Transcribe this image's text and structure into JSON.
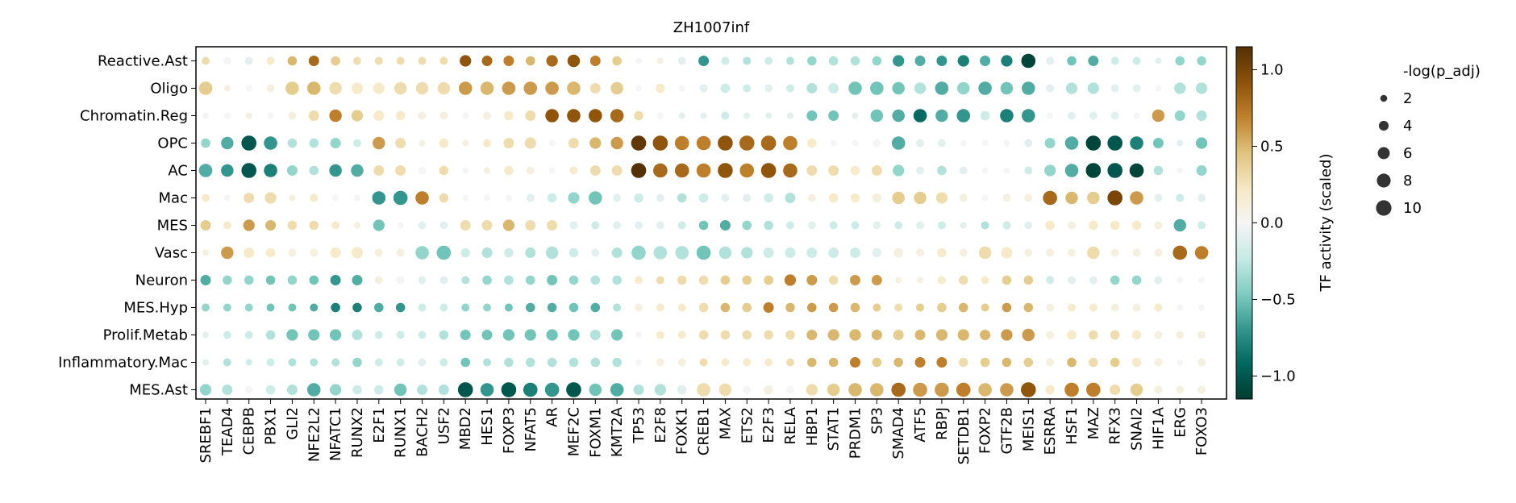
{
  "chart_data": {
    "type": "scatter",
    "subtype": "dotplot",
    "title": "ZH1007inf",
    "xlabel": "",
    "ylabel": "",
    "categories_x": [
      "SREBF1",
      "TEAD4",
      "CEBPB",
      "PBX1",
      "GLI2",
      "NFE2L2",
      "NFATC1",
      "RUNX2",
      "E2F1",
      "RUNX1",
      "BACH2",
      "USF2",
      "MBD2",
      "HES1",
      "FOXP3",
      "NFAT5",
      "AR",
      "MEF2C",
      "FOXM1",
      "KMT2A",
      "TP53",
      "E2F8",
      "FOXK1",
      "CREB1",
      "MAX",
      "ETS2",
      "E2F3",
      "RELA",
      "HBP1",
      "STAT1",
      "PRDM1",
      "SP3",
      "SMAD4",
      "ATF5",
      "RBPJ",
      "SETDB1",
      "FOXP2",
      "GTF2B",
      "MEIS1",
      "ESRRA",
      "HSF1",
      "MAZ",
      "RFX3",
      "SNAI2",
      "HIF1A",
      "ERG",
      "FOXO3"
    ],
    "categories_y": [
      "Reactive.Ast",
      "Oligo",
      "Chromatin.Reg",
      "OPC",
      "AC",
      "Mac",
      "MES",
      "Vasc",
      "Neuron",
      "MES.Hyp",
      "Prolif.Metab",
      "Inflammatory.Mac",
      "MES.Ast"
    ],
    "activity": [
      [
        0.3,
        0,
        -0.1,
        0.2,
        0.5,
        0.8,
        0.4,
        0.3,
        0.3,
        0.3,
        0.3,
        0.3,
        0.9,
        0.8,
        0.7,
        0.5,
        0.8,
        0.9,
        0.7,
        0.4,
        0,
        0.1,
        -0.1,
        -0.7,
        -0.2,
        -0.3,
        -0.2,
        -0.3,
        -0.4,
        -0.3,
        -0.3,
        -0.4,
        -0.7,
        -0.6,
        -0.7,
        -0.8,
        -0.6,
        -0.8,
        -1.1,
        -0.1,
        -0.5,
        -0.6,
        -0.2,
        -0.2,
        -0.1,
        -0.4,
        -0.4
      ],
      [
        0.4,
        0.1,
        0,
        0.1,
        0.4,
        0.5,
        0.3,
        0.2,
        0.2,
        0.3,
        0.3,
        0.3,
        0.6,
        0.5,
        0.6,
        0.6,
        0.6,
        0.5,
        0.3,
        0.4,
        0,
        0.2,
        0,
        -0.1,
        -0.2,
        -0.2,
        -0.1,
        -0.2,
        -0.3,
        -0.2,
        -0.5,
        -0.5,
        -0.5,
        -0.3,
        -0.6,
        -0.4,
        -0.6,
        -0.5,
        -0.6,
        -0.1,
        -0.3,
        -0.3,
        -0.1,
        -0.1,
        0,
        -0.3,
        -0.3
      ],
      [
        0,
        0,
        0.1,
        0,
        0.1,
        0.3,
        0.7,
        0.4,
        0.2,
        0.2,
        0.1,
        0.1,
        0,
        0.1,
        0.2,
        0.3,
        0.9,
        0.9,
        0.9,
        0.8,
        0.3,
        0,
        -0.1,
        -0.1,
        -0.2,
        -0.1,
        -0.1,
        -0.1,
        -0.5,
        -0.5,
        -0.1,
        -0.5,
        -0.6,
        -0.9,
        -0.6,
        -0.7,
        -0.2,
        -0.8,
        -0.7,
        0,
        -0.1,
        -0.1,
        -0.1,
        0,
        0.6,
        -0.4,
        -0.3
      ],
      [
        -0.4,
        -0.6,
        -1,
        -0.7,
        -0.3,
        -0.3,
        -0.4,
        -0.2,
        0.6,
        0.3,
        0.1,
        0.2,
        0.1,
        0.2,
        0.3,
        0.3,
        0,
        0.3,
        0.5,
        0.6,
        1.1,
        0.9,
        0.7,
        0.7,
        0.9,
        0.8,
        0.8,
        0.7,
        0.2,
        0,
        0,
        0,
        -0.6,
        -0.1,
        -0.1,
        0,
        0,
        0,
        -0.1,
        -0.4,
        -0.6,
        -1.1,
        -1,
        -0.8,
        -0.5,
        -0.1,
        -0.5
      ],
      [
        -0.6,
        -0.7,
        -1,
        -0.8,
        -0.4,
        -0.3,
        -0.7,
        -0.6,
        0.3,
        0.3,
        0,
        0.3,
        0,
        0.1,
        0.2,
        0.1,
        0,
        0.2,
        0.3,
        0.3,
        1.2,
        0.8,
        0.8,
        0.7,
        0.9,
        0.7,
        0.9,
        0.8,
        0.3,
        0.3,
        0.2,
        0.3,
        -0.4,
        -0.1,
        -0.3,
        -0.1,
        0,
        0,
        -0.2,
        -0.4,
        -0.6,
        -1.1,
        -1,
        -1.1,
        -0.3,
        0,
        -0.4
      ],
      [
        0.2,
        0,
        0.3,
        0.3,
        0.1,
        0.2,
        0,
        0,
        -0.7,
        -0.7,
        0.7,
        0.3,
        0,
        0,
        0,
        -0.1,
        -0.2,
        -0.4,
        -0.5,
        -0.1,
        -0.2,
        -0.1,
        -0.3,
        -0.2,
        -0.1,
        -0.1,
        -0.2,
        -0.3,
        0.1,
        0.2,
        0.2,
        0.1,
        0.4,
        0.4,
        0.3,
        0.1,
        0,
        0.1,
        0.1,
        0.8,
        0.5,
        0.4,
        1,
        0.6,
        -0.1,
        -0.2,
        -0.1
      ],
      [
        0.4,
        0.2,
        0.6,
        0.5,
        0.3,
        0.3,
        0.2,
        0.1,
        -0.5,
        0,
        -0.1,
        -0.1,
        0.3,
        0.3,
        0.5,
        0.3,
        0.3,
        -0.1,
        -0.2,
        -0.1,
        -0.1,
        -0.1,
        -0.2,
        -0.5,
        -0.6,
        -0.4,
        -0.3,
        -0.2,
        -0.1,
        -0.2,
        -0.2,
        -0.1,
        -0.2,
        -0.1,
        -0.2,
        -0.1,
        -0.3,
        -0.2,
        -0.1,
        0.2,
        0.1,
        0.2,
        0.2,
        0.2,
        0.1,
        -0.6,
        -0.2
      ],
      [
        0.1,
        0.6,
        0.2,
        0.2,
        0.1,
        0.1,
        0.2,
        0.2,
        0.1,
        0.1,
        -0.4,
        -0.5,
        -0.2,
        -0.3,
        -0.2,
        -0.3,
        -0.3,
        -0.2,
        -0.1,
        -0.3,
        -0.4,
        -0.3,
        -0.3,
        -0.5,
        -0.3,
        -0.3,
        -0.2,
        -0.2,
        -0.2,
        -0.2,
        -0.2,
        -0.1,
        0.1,
        0.1,
        0.2,
        0.1,
        0.3,
        0.2,
        0.1,
        0.1,
        0.1,
        0.3,
        0.1,
        0.1,
        0.1,
        0.8,
        0.7
      ],
      [
        -0.6,
        -0.4,
        -0.4,
        -0.5,
        -0.4,
        -0.5,
        -0.7,
        -0.6,
        0.1,
        0,
        -0.1,
        -0.1,
        -0.3,
        -0.4,
        -0.3,
        -0.4,
        -0.5,
        -0.4,
        -0.3,
        -0.3,
        0.2,
        0.3,
        0.3,
        0.3,
        0.4,
        0.4,
        0.4,
        0.7,
        0.6,
        0.3,
        0.6,
        0.6,
        0.1,
        0.1,
        0.2,
        0.3,
        0.2,
        0.4,
        0.4,
        -0.2,
        -0.1,
        -0.1,
        -0.4,
        -0.4,
        -0.1,
        0,
        0
      ],
      [
        -0.4,
        -0.4,
        -0.4,
        -0.5,
        -0.5,
        -0.6,
        -0.8,
        -0.8,
        -0.6,
        -0.7,
        -0.2,
        -0.2,
        -0.4,
        -0.4,
        -0.5,
        -0.6,
        -0.6,
        -0.5,
        -0.6,
        -0.3,
        0.1,
        0.2,
        0.2,
        0.3,
        0.5,
        0.4,
        0.7,
        0.5,
        0.6,
        0.6,
        0.5,
        0.4,
        0.3,
        0.4,
        0.4,
        0.5,
        0.4,
        0.6,
        0.5,
        0.1,
        0.2,
        0.2,
        0.1,
        0.1,
        0.2,
        0,
        0
      ],
      [
        -0.1,
        -0.2,
        -0.2,
        -0.3,
        -0.5,
        -0.5,
        -0.5,
        -0.3,
        -0.2,
        -0.2,
        -0.2,
        -0.3,
        -0.5,
        -0.5,
        -0.5,
        -0.5,
        -0.5,
        -0.5,
        -0.3,
        -0.5,
        0,
        0.2,
        0.2,
        0.3,
        0.3,
        0.3,
        0.3,
        0.3,
        0.5,
        0.5,
        0.5,
        0.5,
        0.4,
        0.5,
        0.5,
        0.5,
        0.5,
        0.6,
        0.6,
        0.1,
        0.2,
        0.3,
        0.3,
        0.2,
        0.1,
        0.1,
        0.1
      ],
      [
        -0.1,
        -0.3,
        -0.2,
        -0.2,
        -0.3,
        -0.3,
        -0.3,
        -0.4,
        -0.2,
        -0.2,
        -0.1,
        -0.2,
        -0.5,
        -0.3,
        -0.3,
        -0.3,
        -0.3,
        -0.3,
        -0.3,
        -0.3,
        0,
        0.1,
        0.1,
        0.3,
        0.2,
        0.2,
        0.2,
        0.3,
        0.5,
        0.5,
        0.7,
        0.4,
        0.5,
        0.7,
        0.7,
        0.3,
        0.4,
        0.5,
        0.4,
        0.1,
        0.5,
        0.3,
        0.4,
        0.2,
        0.1,
        0,
        0.1
      ],
      [
        -0.4,
        -0.3,
        0,
        -0.2,
        -0.3,
        -0.6,
        -0.4,
        -0.2,
        -0.2,
        -0.5,
        -0.3,
        -0.3,
        -1,
        -0.7,
        -1,
        -0.8,
        -0.7,
        -1,
        -0.5,
        -0.6,
        -0.3,
        -0.3,
        -0.1,
        0.3,
        0.3,
        0,
        0.1,
        0,
        0.3,
        0.4,
        0.5,
        0.5,
        0.8,
        0.6,
        0.6,
        0.7,
        0.5,
        0.6,
        0.9,
        0.2,
        0.7,
        0.7,
        0.3,
        0.4,
        0.1,
        0.1,
        0.1
      ]
    ],
    "size_value": [
      [
        3,
        3,
        3,
        3,
        4,
        5,
        4,
        3,
        3,
        3,
        3,
        3,
        6,
        5,
        5,
        4,
        6,
        7,
        5,
        4,
        2,
        2,
        3,
        5,
        3,
        3,
        3,
        3,
        4,
        4,
        4,
        4,
        6,
        5,
        5,
        6,
        5,
        6,
        9,
        3,
        4,
        5,
        3,
        3,
        2,
        4,
        4
      ],
      [
        8,
        2,
        2,
        3,
        8,
        8,
        7,
        6,
        6,
        7,
        7,
        7,
        8,
        8,
        8,
        8,
        8,
        8,
        5,
        7,
        2,
        4,
        2,
        3,
        4,
        3,
        3,
        3,
        5,
        5,
        8,
        8,
        7,
        6,
        8,
        7,
        8,
        7,
        8,
        3,
        6,
        6,
        3,
        3,
        2,
        6,
        6
      ],
      [
        2,
        2,
        2,
        2,
        3,
        5,
        7,
        6,
        5,
        4,
        3,
        3,
        2,
        3,
        4,
        5,
        8,
        8,
        8,
        8,
        4,
        2,
        2,
        2,
        3,
        2,
        2,
        2,
        5,
        5,
        2,
        7,
        7,
        8,
        7,
        8,
        4,
        8,
        8,
        2,
        3,
        3,
        3,
        2,
        7,
        5,
        5
      ],
      [
        4,
        7,
        10,
        8,
        4,
        4,
        5,
        3,
        7,
        5,
        2,
        4,
        2,
        3,
        5,
        6,
        2,
        5,
        6,
        7,
        10,
        10,
        9,
        9,
        10,
        10,
        10,
        9,
        4,
        2,
        2,
        3,
        8,
        3,
        3,
        2,
        2,
        2,
        3,
        5,
        8,
        10,
        10,
        8,
        5,
        2,
        6
      ],
      [
        8,
        7,
        10,
        8,
        5,
        4,
        7,
        7,
        5,
        5,
        3,
        4,
        2,
        2,
        4,
        3,
        2,
        3,
        5,
        5,
        10,
        9,
        9,
        9,
        10,
        9,
        10,
        9,
        5,
        5,
        4,
        5,
        6,
        3,
        4,
        3,
        2,
        2,
        3,
        6,
        8,
        10,
        10,
        9,
        4,
        2,
        5
      ],
      [
        3,
        2,
        5,
        6,
        2,
        3,
        2,
        2,
        8,
        9,
        8,
        4,
        2,
        2,
        2,
        3,
        4,
        6,
        8,
        3,
        4,
        3,
        4,
        4,
        3,
        3,
        4,
        5,
        3,
        4,
        4,
        4,
        7,
        7,
        6,
        3,
        2,
        3,
        3,
        9,
        7,
        7,
        10,
        8,
        3,
        3,
        3
      ],
      [
        5,
        3,
        6,
        5,
        4,
        4,
        3,
        2,
        6,
        2,
        3,
        3,
        5,
        5,
        6,
        5,
        5,
        3,
        3,
        3,
        3,
        3,
        3,
        4,
        5,
        4,
        4,
        3,
        3,
        3,
        3,
        3,
        3,
        3,
        3,
        2,
        3,
        3,
        3,
        4,
        3,
        4,
        4,
        4,
        3,
        7,
        3
      ],
      [
        2,
        7,
        5,
        4,
        3,
        3,
        5,
        6,
        3,
        3,
        8,
        9,
        4,
        5,
        4,
        5,
        7,
        4,
        3,
        5,
        9,
        8,
        8,
        9,
        7,
        6,
        5,
        5,
        5,
        5,
        5,
        4,
        4,
        3,
        4,
        3,
        7,
        6,
        3,
        3,
        3,
        7,
        3,
        3,
        3,
        9,
        8
      ],
      [
        5,
        4,
        4,
        4,
        4,
        4,
        5,
        5,
        3,
        3,
        3,
        3,
        3,
        4,
        4,
        4,
        5,
        4,
        4,
        4,
        3,
        3,
        4,
        4,
        4,
        4,
        4,
        6,
        5,
        4,
        5,
        5,
        2,
        2,
        3,
        4,
        3,
        4,
        4,
        3,
        3,
        3,
        4,
        4,
        3,
        2,
        2
      ],
      [
        3,
        3,
        3,
        3,
        3,
        3,
        4,
        4,
        4,
        4,
        3,
        3,
        3,
        3,
        3,
        4,
        4,
        4,
        4,
        3,
        3,
        3,
        3,
        4,
        4,
        4,
        5,
        4,
        4,
        4,
        4,
        3,
        3,
        3,
        4,
        4,
        3,
        4,
        4,
        3,
        3,
        3,
        3,
        3,
        3,
        2,
        2
      ],
      [
        2,
        3,
        3,
        4,
        6,
        6,
        6,
        5,
        3,
        3,
        3,
        4,
        5,
        5,
        6,
        6,
        6,
        6,
        5,
        6,
        2,
        3,
        3,
        4,
        4,
        4,
        4,
        4,
        5,
        6,
        6,
        5,
        5,
        5,
        6,
        6,
        5,
        6,
        7,
        3,
        4,
        4,
        4,
        4,
        3,
        3,
        3
      ],
      [
        2,
        3,
        2,
        3,
        3,
        3,
        3,
        4,
        3,
        3,
        3,
        3,
        4,
        3,
        4,
        4,
        4,
        4,
        4,
        4,
        2,
        3,
        3,
        3,
        3,
        3,
        3,
        3,
        4,
        4,
        5,
        4,
        4,
        5,
        5,
        4,
        4,
        4,
        4,
        3,
        4,
        4,
        4,
        4,
        3,
        2,
        3
      ],
      [
        6,
        5,
        3,
        4,
        5,
        8,
        6,
        4,
        4,
        7,
        5,
        5,
        10,
        8,
        10,
        9,
        9,
        10,
        7,
        8,
        5,
        6,
        4,
        8,
        7,
        3,
        4,
        3,
        6,
        7,
        8,
        8,
        9,
        9,
        9,
        9,
        8,
        8,
        10,
        4,
        9,
        9,
        5,
        7,
        3,
        3,
        3
      ]
    ],
    "colorbar": {
      "label": "TF activity (scaled)",
      "ticks": [
        "1.0",
        "0.5",
        "0.0",
        "−0.5",
        "−1.0"
      ],
      "tick_values": [
        1.0,
        0.5,
        0.0,
        -0.5,
        -1.0
      ],
      "range": [
        -1.15,
        1.15
      ],
      "colormap": "BrBG_r",
      "stops": [
        "#003c30",
        "#01665e",
        "#35978f",
        "#80cdc1",
        "#c7eae5",
        "#f5f5f5",
        "#f6e8c3",
        "#dfc27d",
        "#bf812d",
        "#8c510a",
        "#543005"
      ]
    },
    "size_legend": {
      "title": "-log(p_adj)",
      "labels": [
        "2",
        "4",
        "6",
        "8",
        "10"
      ],
      "values": [
        2,
        4,
        6,
        8,
        10
      ]
    },
    "legend_position": "right",
    "grid": false,
    "dot_edge_color": "#ffffff"
  }
}
